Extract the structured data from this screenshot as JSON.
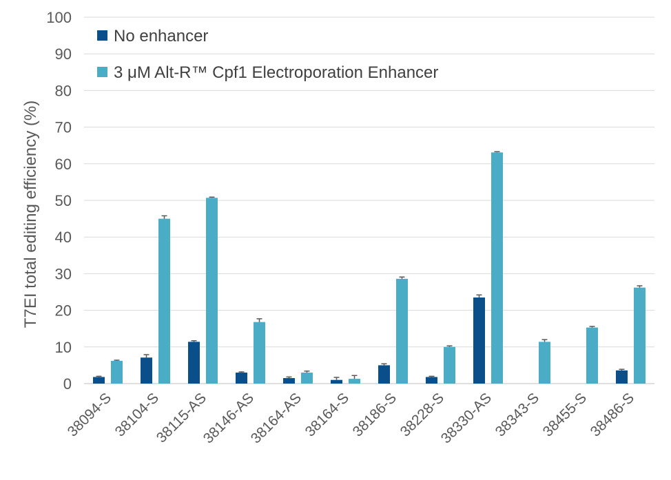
{
  "chart_data": {
    "type": "bar",
    "categories": [
      "38094-S",
      "38104-S",
      "38115-AS",
      "38146-AS",
      "38164-AS",
      "38164-S",
      "38186-S",
      "38228-S",
      "38330-AS",
      "38343-S",
      "38455-S",
      "38486-S"
    ],
    "series": [
      {
        "name": "No enhancer",
        "color": "#0b4f8a",
        "values": [
          1.8,
          7.1,
          11.4,
          3.0,
          1.5,
          1.0,
          5.0,
          1.8,
          23.5,
          0,
          0,
          3.6
        ],
        "errors": [
          0.2,
          0.8,
          0.3,
          0.2,
          0.3,
          0.7,
          0.4,
          0.2,
          0.7,
          0,
          0,
          0.3
        ]
      },
      {
        "name": "3 μM Alt-R™ Cpf1 Electroporation Enhancer",
        "color": "#4bacc6",
        "values": [
          6.2,
          45.0,
          50.7,
          16.8,
          3.0,
          1.3,
          28.6,
          10.0,
          63.1,
          11.4,
          15.3,
          26.2
        ],
        "errors": [
          0.2,
          0.8,
          0.2,
          0.9,
          0.4,
          0.9,
          0.5,
          0.3,
          0.2,
          0.6,
          0.3,
          0.5
        ]
      }
    ],
    "title": "",
    "xlabel": "",
    "ylabel": "T7EI total editing efficiency (%)",
    "ylim": [
      0,
      100
    ],
    "yticks": [
      0,
      10,
      20,
      30,
      40,
      50,
      60,
      70,
      80,
      90,
      100
    ],
    "grid": true,
    "legend_position": "top-left"
  }
}
